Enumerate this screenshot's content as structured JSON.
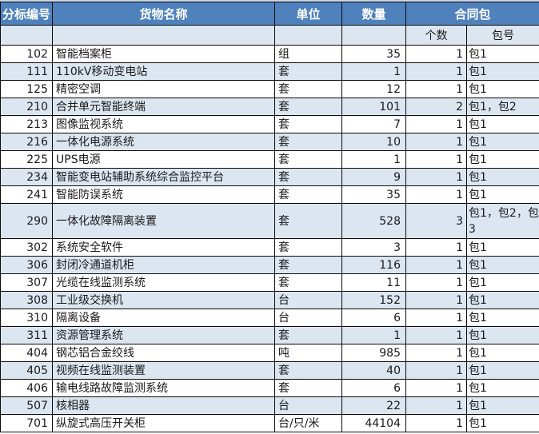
{
  "table": {
    "headers": {
      "bid_no": "分标编号",
      "goods_name": "货物名称",
      "unit": "单位",
      "quantity": "数量",
      "contract_pkg": "合同包",
      "pkg_count": "个数",
      "pkg_no": "包号"
    },
    "colors": {
      "header_bg": "#4f81bd",
      "header_text": "#ffffff",
      "stripe_bg": "#dce6f1",
      "row_bg": "#ffffff",
      "border": "#0a0a0a",
      "text": "#1a1a1a"
    },
    "rows": [
      {
        "id": "102",
        "name": "智能档案柜",
        "unit": "组",
        "qty": "35",
        "count": "1",
        "pkg": "包1"
      },
      {
        "id": "111",
        "name": "110kV移动变电站",
        "unit": "套",
        "qty": "1",
        "count": "1",
        "pkg": "包1"
      },
      {
        "id": "125",
        "name": "精密空调",
        "unit": "套",
        "qty": "12",
        "count": "1",
        "pkg": "包1"
      },
      {
        "id": "210",
        "name": "合并单元智能终端",
        "unit": "套",
        "qty": "101",
        "count": "2",
        "pkg": "包1，包2"
      },
      {
        "id": "213",
        "name": "图像监视系统",
        "unit": "套",
        "qty": "7",
        "count": "1",
        "pkg": "包1"
      },
      {
        "id": "216",
        "name": "一体化电源系统",
        "unit": "套",
        "qty": "10",
        "count": "1",
        "pkg": "包1"
      },
      {
        "id": "225",
        "name": "UPS电源",
        "unit": "套",
        "qty": "1",
        "count": "1",
        "pkg": "包1"
      },
      {
        "id": "234",
        "name": "智能变电站辅助系统综合监控平台",
        "unit": "套",
        "qty": "9",
        "count": "1",
        "pkg": "包1"
      },
      {
        "id": "241",
        "name": "智能防误系统",
        "unit": "套",
        "qty": "35",
        "count": "1",
        "pkg": "包1"
      },
      {
        "id": "290",
        "name": "一体化故障隔离装置",
        "unit": "套",
        "qty": "528",
        "count": "3",
        "pkg": "包1，包2，包3",
        "tall": true
      },
      {
        "id": "302",
        "name": "系统安全软件",
        "unit": "套",
        "qty": "3",
        "count": "1",
        "pkg": "包1"
      },
      {
        "id": "306",
        "name": "封闭冷通道机柜",
        "unit": "套",
        "qty": "116",
        "count": "1",
        "pkg": "包1"
      },
      {
        "id": "307",
        "name": "光缆在线监测系统",
        "unit": "套",
        "qty": "11",
        "count": "1",
        "pkg": "包1"
      },
      {
        "id": "308",
        "name": "工业级交换机",
        "unit": "台",
        "qty": "152",
        "count": "1",
        "pkg": "包1"
      },
      {
        "id": "310",
        "name": "隔离设备",
        "unit": "台",
        "qty": "6",
        "count": "1",
        "pkg": "包1"
      },
      {
        "id": "311",
        "name": "资源管理系统",
        "unit": "套",
        "qty": "1",
        "count": "1",
        "pkg": "包1"
      },
      {
        "id": "404",
        "name": "钢芯铝合金绞线",
        "unit": "吨",
        "qty": "985",
        "count": "1",
        "pkg": "包1"
      },
      {
        "id": "405",
        "name": "视频在线监测装置",
        "unit": "套",
        "qty": "40",
        "count": "1",
        "pkg": "包1"
      },
      {
        "id": "406",
        "name": "输电线路故障监测系统",
        "unit": "套",
        "qty": "6",
        "count": "1",
        "pkg": "包1"
      },
      {
        "id": "507",
        "name": "核相器",
        "unit": "台",
        "qty": "22",
        "count": "1",
        "pkg": "包1"
      },
      {
        "id": "701",
        "name": "纵旋式高压开关柜",
        "unit": "台/只/米",
        "qty": "44104",
        "count": "1",
        "pkg": "包1"
      }
    ]
  }
}
